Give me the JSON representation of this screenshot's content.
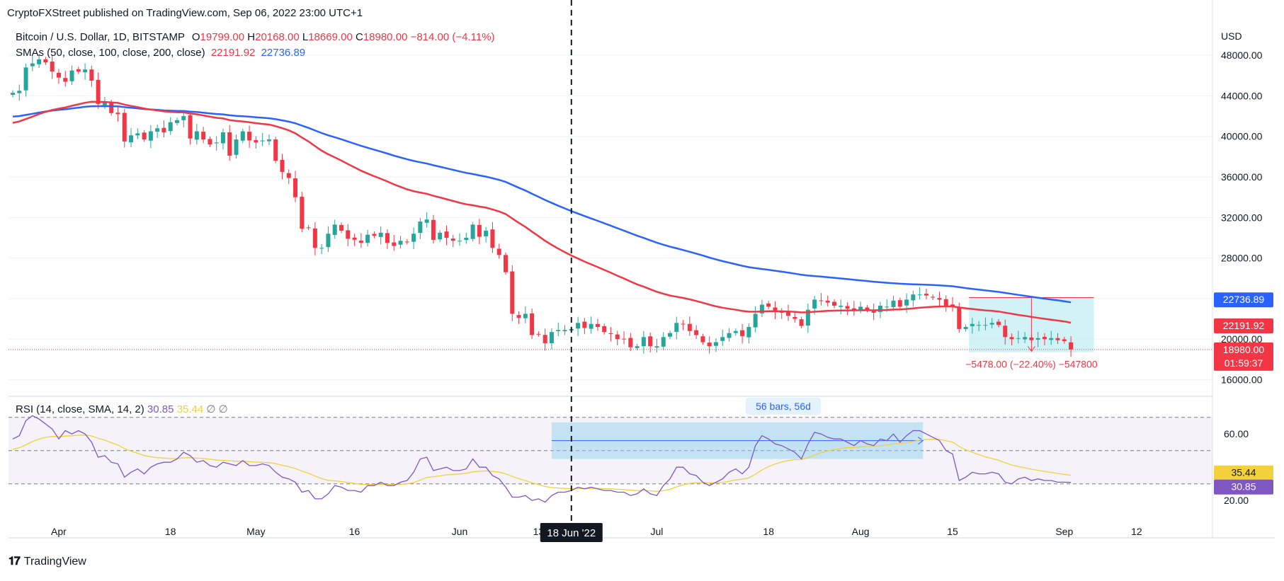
{
  "header": {
    "published": "CryptoFXStreet published on TradingView.com, Sep 06, 2022 23:00 UTC+1"
  },
  "legend": {
    "symbol": "Bitcoin / U.S. Dollar, 1D, BITSTAMP",
    "ohlc": {
      "o_label": "O",
      "o": "19799.00",
      "h_label": "H",
      "h": "20168.00",
      "l_label": "L",
      "l": "18669.00",
      "c_label": "C",
      "c": "18980.00",
      "chg": "−814.00 (−4.11%)"
    },
    "sma_label": "SMAs (50, close, 100, close, 200, close)",
    "sma50_value": "22191.92",
    "sma100_value": "22736.89",
    "rsi_label": "RSI (14, close, SMA, 14, 2)",
    "rsi_value": "30.85",
    "rsi_sma_value": "35.44",
    "rsi_extra": "∅ ∅"
  },
  "axis": {
    "currency": "USD"
  },
  "badges": {
    "sma100": "22736.89",
    "sma50": "22191.92",
    "price": "18980.00",
    "countdown": "01:59:37",
    "rsi_sma": "35.44",
    "rsi": "30.85",
    "date_cursor": "18 Jun '22"
  },
  "annotations": {
    "measure": "−5478.00 (−22.40%) −547800",
    "range": "56 bars, 56d"
  },
  "footer": {
    "brand": "TradingView"
  },
  "colors": {
    "up": "#26a69a",
    "down": "#f23645",
    "sma50": "#f23645",
    "sma100": "#2962ff",
    "rsi": "#7e57c2",
    "rsi_sma": "#f2d13c",
    "box": "#b2ebf2"
  },
  "chart_data": {
    "type": "candlestick",
    "title": "Bitcoin / U.S. Dollar, 1D, BITSTAMP",
    "xlabel": "",
    "ylabel": "USD",
    "ylim": [
      14500,
      51500
    ],
    "yticks": [
      16000,
      20000,
      24000,
      28000,
      32000,
      36000,
      40000,
      44000,
      48000
    ],
    "ytick_labels": [
      "16000.00",
      "20000.00",
      "24000.00",
      "28000.00",
      "32000.00",
      "36000.00",
      "40000.00",
      "44000.00",
      "48000.00"
    ],
    "x_start_date": "2022-03-25",
    "xticks": [
      {
        "day": 7,
        "label": "Apr"
      },
      {
        "day": 24,
        "label": "18"
      },
      {
        "day": 37,
        "label": "May"
      },
      {
        "day": 52,
        "label": "16"
      },
      {
        "day": 68,
        "label": "Jun"
      },
      {
        "day": 80,
        "label": "13"
      },
      {
        "day": 98,
        "label": "Jul"
      },
      {
        "day": 115,
        "label": "18"
      },
      {
        "day": 129,
        "label": "Aug"
      },
      {
        "day": 143,
        "label": "15"
      },
      {
        "day": 160,
        "label": "Sep"
      },
      {
        "day": 171,
        "label": "12"
      }
    ],
    "closes": [
      44300,
      44500,
      46800,
      47200,
      47600,
      47300,
      46400,
      45800,
      45400,
      46500,
      46400,
      46600,
      45500,
      43200,
      43400,
      42300,
      42200,
      39500,
      40100,
      40300,
      39700,
      40500,
      40800,
      40400,
      41400,
      41600,
      42000,
      39800,
      40500,
      39700,
      39200,
      39400,
      40400,
      38100,
      39700,
      40500,
      39600,
      39400,
      39600,
      39700,
      37600,
      36500,
      35900,
      34000,
      30900,
      31000,
      29000,
      29000,
      30400,
      31300,
      30700,
      29900,
      29800,
      29500,
      30300,
      30200,
      30500,
      29500,
      29200,
      29700,
      29600,
      30400,
      31600,
      31800,
      29800,
      30500,
      30000,
      29700,
      29700,
      30000,
      31300,
      30100,
      30700,
      29000,
      28300,
      26600,
      22500,
      22100,
      22500,
      20400,
      20500,
      19600,
      20700,
      20900,
      20900,
      21000,
      21600,
      21100,
      21500,
      21200,
      20700,
      20500,
      20000,
      20000,
      19200,
      19300,
      20200,
      19300,
      19300,
      20200,
      20600,
      21600,
      21500,
      20800,
      20400,
      19700,
      19300,
      19700,
      20200,
      20600,
      20800,
      20300,
      21200,
      22500,
      23400,
      23200,
      22700,
      22600,
      22300,
      22000,
      21300,
      22900,
      23900,
      23800,
      23600,
      23300,
      23300,
      23000,
      22800,
      23200,
      22900,
      22600,
      23300,
      23200,
      23800,
      23200,
      23900,
      24400,
      24400,
      24300,
      24100,
      23900,
      23300,
      23200,
      21000,
      21200,
      21500,
      21400,
      21400,
      21600,
      21400,
      20200,
      20000,
      20100,
      20200,
      19900,
      20100,
      20000,
      20100,
      19900,
      19800,
      18980
    ],
    "sma50_start": 41200,
    "sma100_start": 41900,
    "rsi": [
      57,
      59,
      68,
      71,
      69,
      66,
      63,
      57,
      62,
      60,
      62,
      60,
      55,
      46,
      47,
      43,
      42,
      34,
      37,
      39,
      36,
      40,
      42,
      43,
      43,
      45,
      49,
      47,
      43,
      44,
      41,
      40,
      43,
      42,
      41,
      44,
      41,
      41,
      42,
      41,
      37,
      34,
      33,
      31,
      25,
      26,
      21,
      21,
      24,
      29,
      28,
      26,
      26,
      25,
      29,
      29,
      31,
      29,
      29,
      31,
      32,
      37,
      45,
      46,
      38,
      39,
      40,
      38,
      38,
      39,
      45,
      40,
      40,
      35,
      33,
      28,
      22,
      22,
      23,
      20,
      21,
      19,
      23,
      25,
      25,
      26,
      28,
      27,
      28,
      27,
      26,
      26,
      25,
      25,
      23,
      24,
      27,
      24,
      23,
      29,
      33,
      40,
      40,
      36,
      35,
      31,
      29,
      31,
      33,
      37,
      39,
      36,
      40,
      53,
      59,
      57,
      54,
      53,
      51,
      49,
      45,
      54,
      61,
      60,
      58,
      57,
      57,
      55,
      53,
      56,
      54,
      53,
      57,
      56,
      60,
      55,
      59,
      62,
      62,
      60,
      58,
      56,
      50,
      48,
      32,
      34,
      37,
      36,
      36,
      37,
      36,
      31,
      30,
      33,
      34,
      32,
      33,
      32,
      32,
      31,
      31,
      30.85
    ],
    "rsi_ylim": [
      12,
      75
    ],
    "rsi_levels": [
      70,
      50,
      30
    ],
    "rsi_ticks": [
      {
        "v": 20,
        "label": "20.00"
      },
      {
        "v": 60,
        "label": "60.00"
      }
    ],
    "rsi_sma_start": 50
  }
}
